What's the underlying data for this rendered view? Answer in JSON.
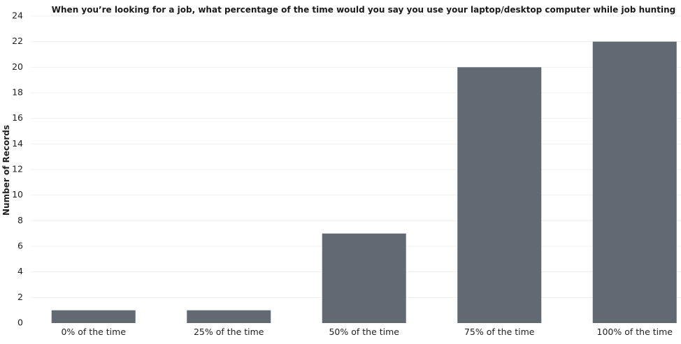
{
  "chart_data": {
    "type": "bar",
    "title": "When you’re looking for a job, what percentage of the time would you say you use your laptop/desktop computer while job hunting",
    "xlabel": "",
    "ylabel": "Number of Records",
    "categories": [
      "0% of the time",
      "25% of the time",
      "50% of the time",
      "75% of the time",
      "100% of the time"
    ],
    "values": [
      1,
      1,
      7,
      20,
      22
    ],
    "ylim": [
      0,
      24
    ],
    "yticks": [
      0,
      2,
      4,
      6,
      8,
      10,
      12,
      14,
      16,
      18,
      20,
      22,
      24
    ],
    "grid": true,
    "colors": {
      "bar": "#616a73",
      "grid": "#f0f0f0"
    }
  }
}
